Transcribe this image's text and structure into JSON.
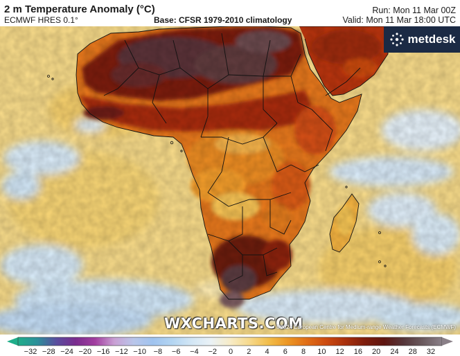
{
  "header": {
    "title": "2 m Temperature Anomaly (°C)",
    "model": "ECMWF HRES 0.1°",
    "base": "Base: CFSR 1979-2010 climatology",
    "run": "Run: Mon 11 Mar 00Z",
    "valid": "Valid: Mon 11 Mar 18:00 UTC"
  },
  "brand": {
    "name": "metdesk",
    "logo_icon": "metdesk-logo-icon"
  },
  "watermark": "WXCHARTS.COM",
  "copyright": "©2024 European Centre for Medium-range Weather Forecasts (ECMWF)",
  "legend": {
    "ticks": [
      "−32",
      "−28",
      "−24",
      "−20",
      "−16",
      "−12",
      "−10",
      "−8",
      "−6",
      "−4",
      "−2",
      "0",
      "2",
      "4",
      "6",
      "8",
      "10",
      "12",
      "16",
      "20",
      "24",
      "28",
      "32"
    ],
    "colors": [
      "#1fae8a",
      "#2c8f9a",
      "#5a4d9e",
      "#7a2c8e",
      "#a23ea0",
      "#c9a0d4",
      "#b9c6ea",
      "#9fc3ef",
      "#b3d5f2",
      "#d2e6f5",
      "#eaf2f6",
      "#f7ecc8",
      "#f6d98c",
      "#f2bd4a",
      "#ec9624",
      "#e06d16",
      "#cc4a10",
      "#a8300c",
      "#7d1d0c",
      "#5e1510",
      "#56363a",
      "#6a5a5e",
      "#8a8088"
    ]
  }
}
